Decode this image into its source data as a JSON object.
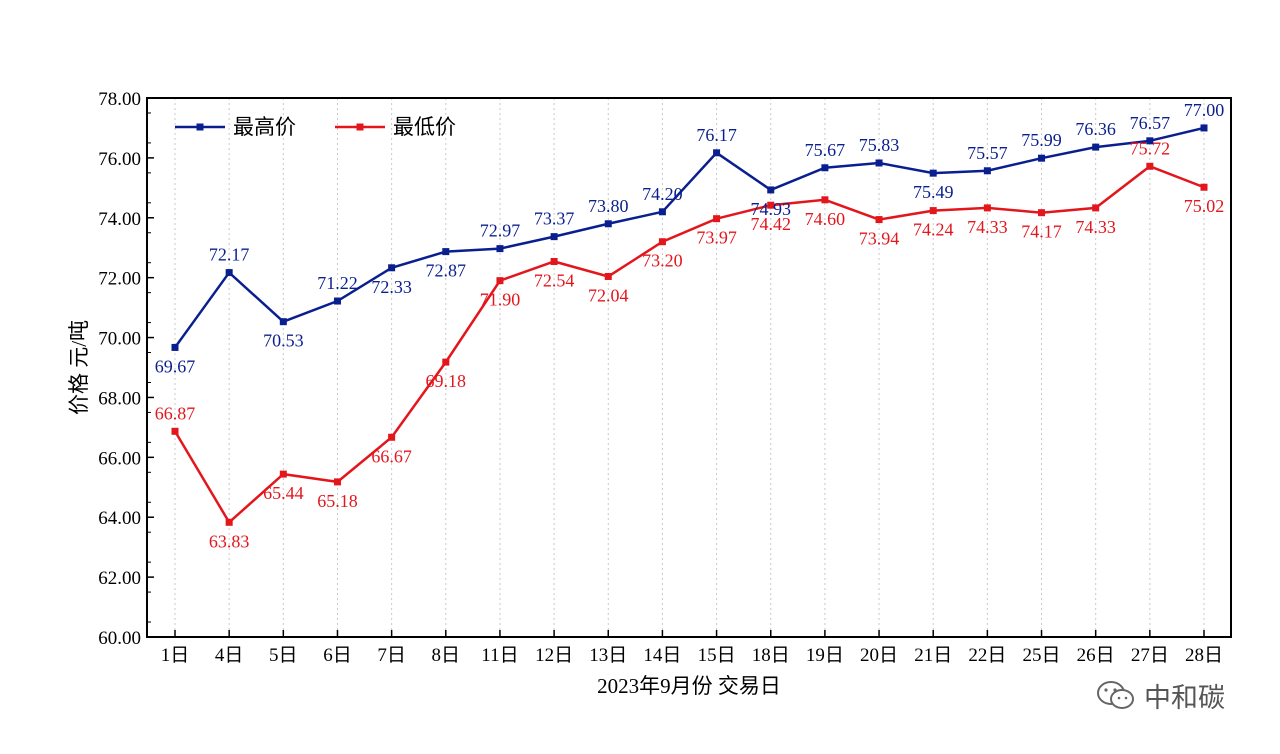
{
  "chart_data": {
    "type": "line",
    "title": "",
    "xlabel": "2023年9月份 交易日",
    "ylabel": "价格 元/吨",
    "ylim": [
      60,
      78
    ],
    "yticks": [
      "60.00",
      "62.00",
      "64.00",
      "66.00",
      "68.00",
      "70.00",
      "72.00",
      "74.00",
      "76.00",
      "78.00"
    ],
    "categories": [
      "1日",
      "4日",
      "5日",
      "6日",
      "7日",
      "8日",
      "11日",
      "12日",
      "13日",
      "14日",
      "15日",
      "18日",
      "19日",
      "20日",
      "21日",
      "22日",
      "25日",
      "26日",
      "27日",
      "28日"
    ],
    "series": [
      {
        "name": "最高价",
        "color": "#0a1f8f",
        "values": [
          69.67,
          72.17,
          70.53,
          71.22,
          72.33,
          72.87,
          72.97,
          73.37,
          73.8,
          74.2,
          76.17,
          74.93,
          75.67,
          75.83,
          75.49,
          75.57,
          75.99,
          76.36,
          76.57,
          77.0
        ],
        "labels": [
          "69.67",
          "72.17",
          "70.53",
          "71.22",
          "72.33",
          "72.87",
          "72.97",
          "73.37",
          "73.80",
          "74.20",
          "76.17",
          "74.93",
          "75.67",
          "75.83",
          "75.49",
          "75.57",
          "75.99",
          "76.36",
          "76.57",
          "77.00"
        ]
      },
      {
        "name": "最低价",
        "color": "#e3161c",
        "values": [
          66.87,
          63.83,
          65.44,
          65.18,
          66.67,
          69.18,
          71.9,
          72.54,
          72.04,
          73.2,
          73.97,
          74.42,
          74.6,
          73.94,
          74.24,
          74.33,
          74.17,
          74.33,
          75.72,
          75.02
        ],
        "labels": [
          "66.87",
          "63.83",
          "65.44",
          "65.18",
          "66.67",
          "69.18",
          "71.90",
          "72.54",
          "72.04",
          "73.20",
          "73.97",
          "74.42",
          "74.60",
          "73.94",
          "74.24",
          "74.33",
          "74.17",
          "74.33",
          "75.72",
          "75.02"
        ]
      }
    ],
    "legend": "top-left",
    "grid": "vertical dotted"
  },
  "watermark": {
    "text": "中和碳",
    "icon": "wechat-icon"
  }
}
